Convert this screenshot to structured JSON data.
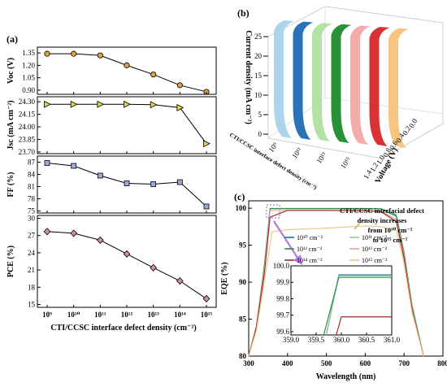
{
  "panels": {
    "a": "(a)",
    "b": "(b)",
    "c": "(c)"
  },
  "colors": {
    "voc": "#d9a441",
    "jsc": "#e0d54b",
    "ff": "#9ea7e4",
    "pce": "#d28cb0",
    "line": "#000000"
  },
  "chart_data": [
    {
      "panel": "a",
      "type": "line",
      "x_tick_labels": [
        "10⁹",
        "10¹⁰",
        "10¹¹",
        "10¹²",
        "10¹³",
        "10¹⁴",
        "10¹⁵"
      ],
      "x_exponents": [
        9,
        10,
        11,
        12,
        13,
        14,
        15
      ],
      "xlabel": "CTI/CCSC interface defect density (cm⁻²)",
      "subplots": [
        {
          "key": "voc",
          "ylabel": "Voc (V)",
          "y_ticks": [
            0.9,
            1.05,
            1.2,
            1.35
          ],
          "y_tick_labels": [
            "0.90",
            "1.05",
            "1.20",
            "1.35"
          ],
          "ylim": [
            0.85,
            1.42
          ],
          "marker": "circle",
          "values": [
            1.34,
            1.34,
            1.32,
            1.2,
            1.09,
            0.96,
            0.88
          ]
        },
        {
          "key": "jsc",
          "ylabel": "Jsc (mA cm⁻²)",
          "y_ticks": [
            23.7,
            23.85,
            24.0,
            24.15,
            24.3
          ],
          "y_tick_labels": [
            "23.70",
            "23.85",
            "24.00",
            "24.15",
            "24.30"
          ],
          "ylim": [
            23.68,
            24.36
          ],
          "marker": "triangle-right",
          "values": [
            24.27,
            24.27,
            24.27,
            24.27,
            24.265,
            24.23,
            23.8
          ]
        },
        {
          "key": "ff",
          "ylabel": "FF (%)",
          "y_ticks": [
            75,
            78,
            81,
            84,
            87
          ],
          "y_tick_labels": [
            "75",
            "78",
            "81",
            "84",
            "87"
          ],
          "ylim": [
            74.5,
            88.5
          ],
          "marker": "square",
          "values": [
            86.8,
            86.1,
            83.7,
            81.8,
            81.6,
            82.1,
            76.1
          ]
        },
        {
          "key": "pce",
          "ylabel": "PCE (%)",
          "y_ticks": [
            15,
            18,
            21,
            24,
            27,
            30
          ],
          "y_tick_labels": [
            "15",
            "18",
            "21",
            "24",
            "27",
            "30"
          ],
          "ylim": [
            14.5,
            30.5
          ],
          "marker": "diamond",
          "values": [
            27.7,
            27.4,
            26.2,
            23.8,
            21.4,
            19.1,
            16.0
          ]
        }
      ]
    },
    {
      "panel": "b",
      "type": "area",
      "ylabel": "Current density (mA cm⁻²)",
      "x_axis_label": "Voltage (V)",
      "depth_axis_label": "CTI/CCSC interface defect density (cm⁻²)",
      "z_ticks": [
        0,
        5,
        10,
        15,
        20,
        25
      ],
      "voltage_ticks": [
        0.0,
        0.2,
        0.4,
        0.6,
        0.8,
        1.0,
        1.2,
        1.4
      ],
      "depth_ticks": [
        "10⁹",
        "10¹¹",
        "10¹³",
        "10¹⁵"
      ],
      "series": [
        {
          "color": "#a8d2ea"
        },
        {
          "color": "#1f6bb5"
        },
        {
          "color": "#b0e0a0"
        },
        {
          "color": "#1e8c2e"
        },
        {
          "color": "#f2a6a6"
        },
        {
          "color": "#d8262b"
        },
        {
          "color": "#f5c27a"
        }
      ]
    },
    {
      "panel": "c",
      "type": "line",
      "xlabel": "Wavelength (nm)",
      "ylabel": "EQE (%)",
      "xlim": [
        300,
        800
      ],
      "ylim": [
        80,
        101
      ],
      "x_ticks": [
        300,
        400,
        500,
        600,
        700,
        800
      ],
      "y_ticks": [
        80,
        85,
        90,
        95,
        100
      ],
      "annotation": [
        "CTI/CCSC interfacial defect",
        "density increases",
        "from 10¹⁰ cm⁻²",
        "to 10¹⁵ cm⁻²"
      ],
      "series": [
        {
          "name": "10¹⁰ cm⁻²",
          "color": "#1e6cb6",
          "x": [
            300,
            320,
            340,
            355,
            400,
            500,
            600,
            640,
            680,
            700,
            720,
            750
          ],
          "y": [
            80,
            84,
            92,
            99.96,
            99.96,
            99.96,
            99.96,
            99.94,
            99.1,
            94,
            87,
            80
          ]
        },
        {
          "name": "10¹¹ cm⁻²",
          "color": "#8fc99a",
          "x": [
            300,
            320,
            340,
            355,
            400,
            500,
            600,
            640,
            680,
            700,
            720,
            750
          ],
          "y": [
            80,
            84,
            92,
            99.95,
            99.95,
            99.95,
            99.95,
            99.93,
            99.0,
            94,
            87,
            80
          ]
        },
        {
          "name": "10¹² cm⁻²",
          "color": "#2e8f3c",
          "x": [
            300,
            320,
            340,
            355,
            400,
            500,
            600,
            640,
            680,
            700,
            720,
            750
          ],
          "y": [
            80,
            84,
            92,
            99.94,
            99.94,
            99.94,
            99.94,
            99.92,
            98.9,
            93.8,
            86.8,
            80
          ]
        },
        {
          "name": "10¹³ cm⁻²",
          "color": "#e3a6a6",
          "x": [
            300,
            320,
            340,
            355,
            400,
            500,
            600,
            640,
            680,
            700,
            720,
            750
          ],
          "y": [
            80,
            84,
            91.5,
            99.7,
            99.7,
            99.7,
            99.7,
            99.6,
            98.5,
            93.5,
            86.5,
            80
          ]
        },
        {
          "name": "10¹⁴ cm⁻²",
          "color": "#a52a2a",
          "x": [
            300,
            320,
            340,
            355,
            400,
            500,
            600,
            640,
            680,
            700,
            720,
            750
          ],
          "y": [
            80,
            84,
            91,
            98.8,
            99.7,
            99.7,
            99.65,
            99.55,
            98.2,
            93.2,
            86.3,
            80
          ]
        },
        {
          "name": "10¹⁵ cm⁻²",
          "color": "#e8c98a",
          "x": [
            300,
            320,
            340,
            360,
            400,
            500,
            600,
            640,
            680,
            700,
            720,
            750
          ],
          "y": [
            80,
            83.5,
            90,
            96.8,
            97.1,
            97.3,
            97.6,
            97.5,
            97.0,
            92.5,
            86,
            80
          ]
        }
      ],
      "inset": {
        "xlim": [
          359.0,
          361.0
        ],
        "ylim": [
          99.58,
          100.0
        ],
        "x_tick_labels": [
          "359.0",
          "359.5",
          "360.0",
          "360.5",
          "361.0"
        ],
        "y_tick_labels": [
          "99.6",
          "99.7",
          "99.8",
          "99.9",
          "100.0"
        ],
        "series": [
          {
            "color": "#1e6cb6",
            "x": [
              359.7,
              359.95,
              361.0
            ],
            "y": [
              99.58,
              99.945,
              99.945
            ]
          },
          {
            "color": "#8fc99a",
            "x": [
              359.7,
              359.95,
              361.0
            ],
            "y": [
              99.58,
              99.94,
              99.94
            ]
          },
          {
            "color": "#2e8f3c",
            "x": [
              359.65,
              359.95,
              361.0
            ],
            "y": [
              99.58,
              99.93,
              99.93
            ]
          },
          {
            "color": "#a52a2a",
            "x": [
              359.9,
              360.0,
              361.0
            ],
            "y": [
              99.58,
              99.69,
              99.69
            ]
          }
        ]
      }
    }
  ]
}
